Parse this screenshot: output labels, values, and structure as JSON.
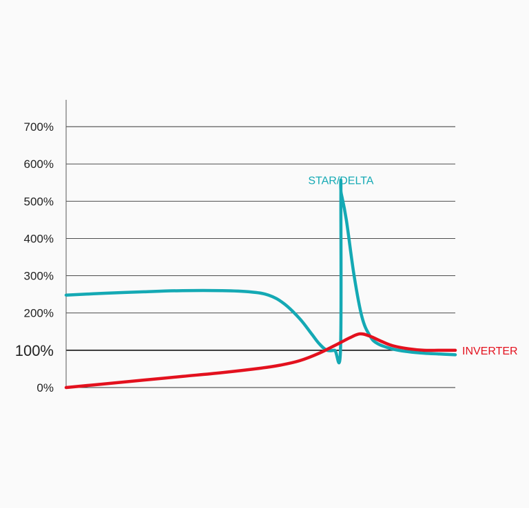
{
  "chart_data": {
    "type": "line",
    "title": "",
    "xlabel": "",
    "ylabel": "",
    "ylim": [
      0,
      700
    ],
    "xlim": [
      0,
      100
    ],
    "grid": true,
    "y_ticks": [
      {
        "value": 0,
        "label": "0%"
      },
      {
        "value": 100,
        "label": "100%",
        "emphasis": true
      },
      {
        "value": 200,
        "label": "200%"
      },
      {
        "value": 300,
        "label": "300%"
      },
      {
        "value": 400,
        "label": "400%"
      },
      {
        "value": 500,
        "label": "500%"
      },
      {
        "value": 600,
        "label": "600%"
      },
      {
        "value": 700,
        "label": "700%"
      }
    ],
    "series": [
      {
        "name": "STAR/DELTA",
        "color": "#14a9b4",
        "label_position": "above-peak",
        "x": [
          0,
          10,
          20,
          30,
          40,
          47,
          52,
          56,
          60,
          63,
          65,
          67,
          69,
          70.5,
          70.6,
          70.7,
          72,
          74,
          76,
          78,
          80,
          84,
          88,
          92,
          96,
          100
        ],
        "y": [
          248,
          253,
          257,
          260,
          260,
          257,
          248,
          225,
          185,
          145,
          118,
          100,
          100,
          100,
          520,
          520,
          450,
          300,
          190,
          140,
          118,
          103,
          96,
          92,
          90,
          88
        ]
      },
      {
        "name": "INVERTER",
        "color": "#e3111e",
        "label_position": "right-end",
        "x": [
          0,
          10,
          20,
          30,
          40,
          50,
          55,
          60,
          65,
          70,
          73,
          75.5,
          78,
          81,
          84,
          88,
          92,
          96,
          100
        ],
        "y": [
          0,
          10,
          20,
          30,
          40,
          52,
          60,
          72,
          92,
          118,
          134,
          144,
          138,
          124,
          112,
          104,
          100,
          100,
          100
        ]
      }
    ]
  }
}
